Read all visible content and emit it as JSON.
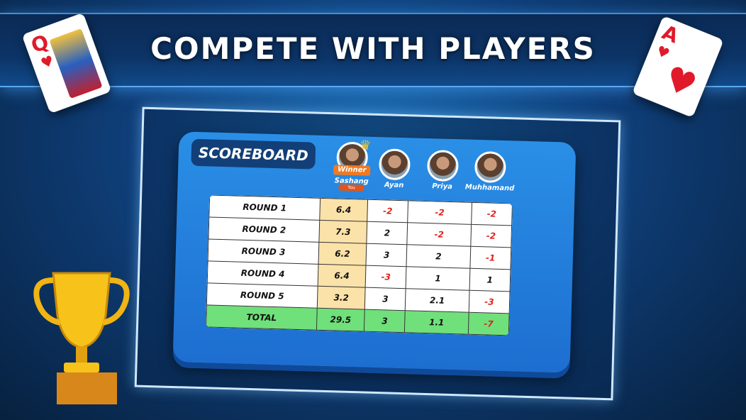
{
  "title": "COMPETE WITH PLAYERS",
  "cards": [
    {
      "rank": "Q",
      "suit": "♥"
    },
    {
      "rank": "A",
      "suit": "♥"
    }
  ],
  "scoreboard": {
    "title": "SCOREBOARD",
    "winner_badge": "Winner",
    "you_badge": "You",
    "players": [
      "Sashang",
      "Ayan",
      "Priya",
      "Muhhamand"
    ],
    "rows": [
      {
        "label": "ROUND 1",
        "scores": [
          "6.4",
          "-2",
          "-2",
          "-2"
        ]
      },
      {
        "label": "ROUND 2",
        "scores": [
          "7.3",
          "2",
          "-2",
          "-2"
        ]
      },
      {
        "label": "ROUND 3",
        "scores": [
          "6.2",
          "3",
          "2",
          "-1"
        ]
      },
      {
        "label": "ROUND 4",
        "scores": [
          "6.4",
          "-3",
          "1",
          "1"
        ]
      },
      {
        "label": "ROUND 5",
        "scores": [
          "3.2",
          "3",
          "2.1",
          "-3"
        ]
      }
    ],
    "total": {
      "label": "TOTAL",
      "scores": [
        "29.5",
        "3",
        "1.1",
        "-7"
      ]
    }
  },
  "colors": {
    "negative": "#e0221a",
    "highlight": "#fbe2a8",
    "total_row": "#6fe07a",
    "board": "#2a8fe6"
  }
}
